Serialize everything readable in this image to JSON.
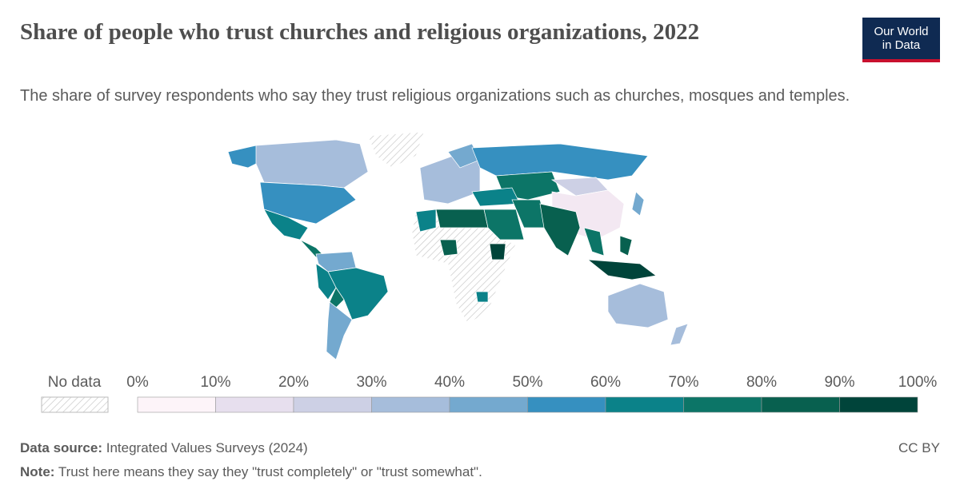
{
  "header": {
    "title": "Share of people who trust churches and religious organizations, 2022",
    "subtitle": "The share of survey respondents who say they trust religious organizations such as churches, mosques and temples.",
    "logo": [
      "Our World",
      "in Data"
    ]
  },
  "legend": {
    "no_data": "No data",
    "ticks": [
      {
        "value": 0,
        "label": "0%"
      },
      {
        "value": 10,
        "label": "10%"
      },
      {
        "value": 20,
        "label": "20%"
      },
      {
        "value": 30,
        "label": "30%"
      },
      {
        "value": 40,
        "label": "40%"
      },
      {
        "value": 50,
        "label": "50%"
      },
      {
        "value": 60,
        "label": "60%"
      },
      {
        "value": 70,
        "label": "70%"
      },
      {
        "value": 80,
        "label": "80%"
      },
      {
        "value": 90,
        "label": "90%"
      },
      {
        "value": 100,
        "label": "100%"
      }
    ],
    "colors": [
      "#fdf4f9",
      "#e7dfee",
      "#cdd0e5",
      "#a6bddb",
      "#74a9cf",
      "#3690c0",
      "#0b8289",
      "#0c7567",
      "#08604f",
      "#00443a"
    ]
  },
  "footer": {
    "source_label": "Data source:",
    "source": "Integrated Values Surveys (2024)",
    "license": "CC BY",
    "note_label": "Note:",
    "note": "Trust here means they say they \"trust completely\" or \"trust somewhat\"."
  }
}
